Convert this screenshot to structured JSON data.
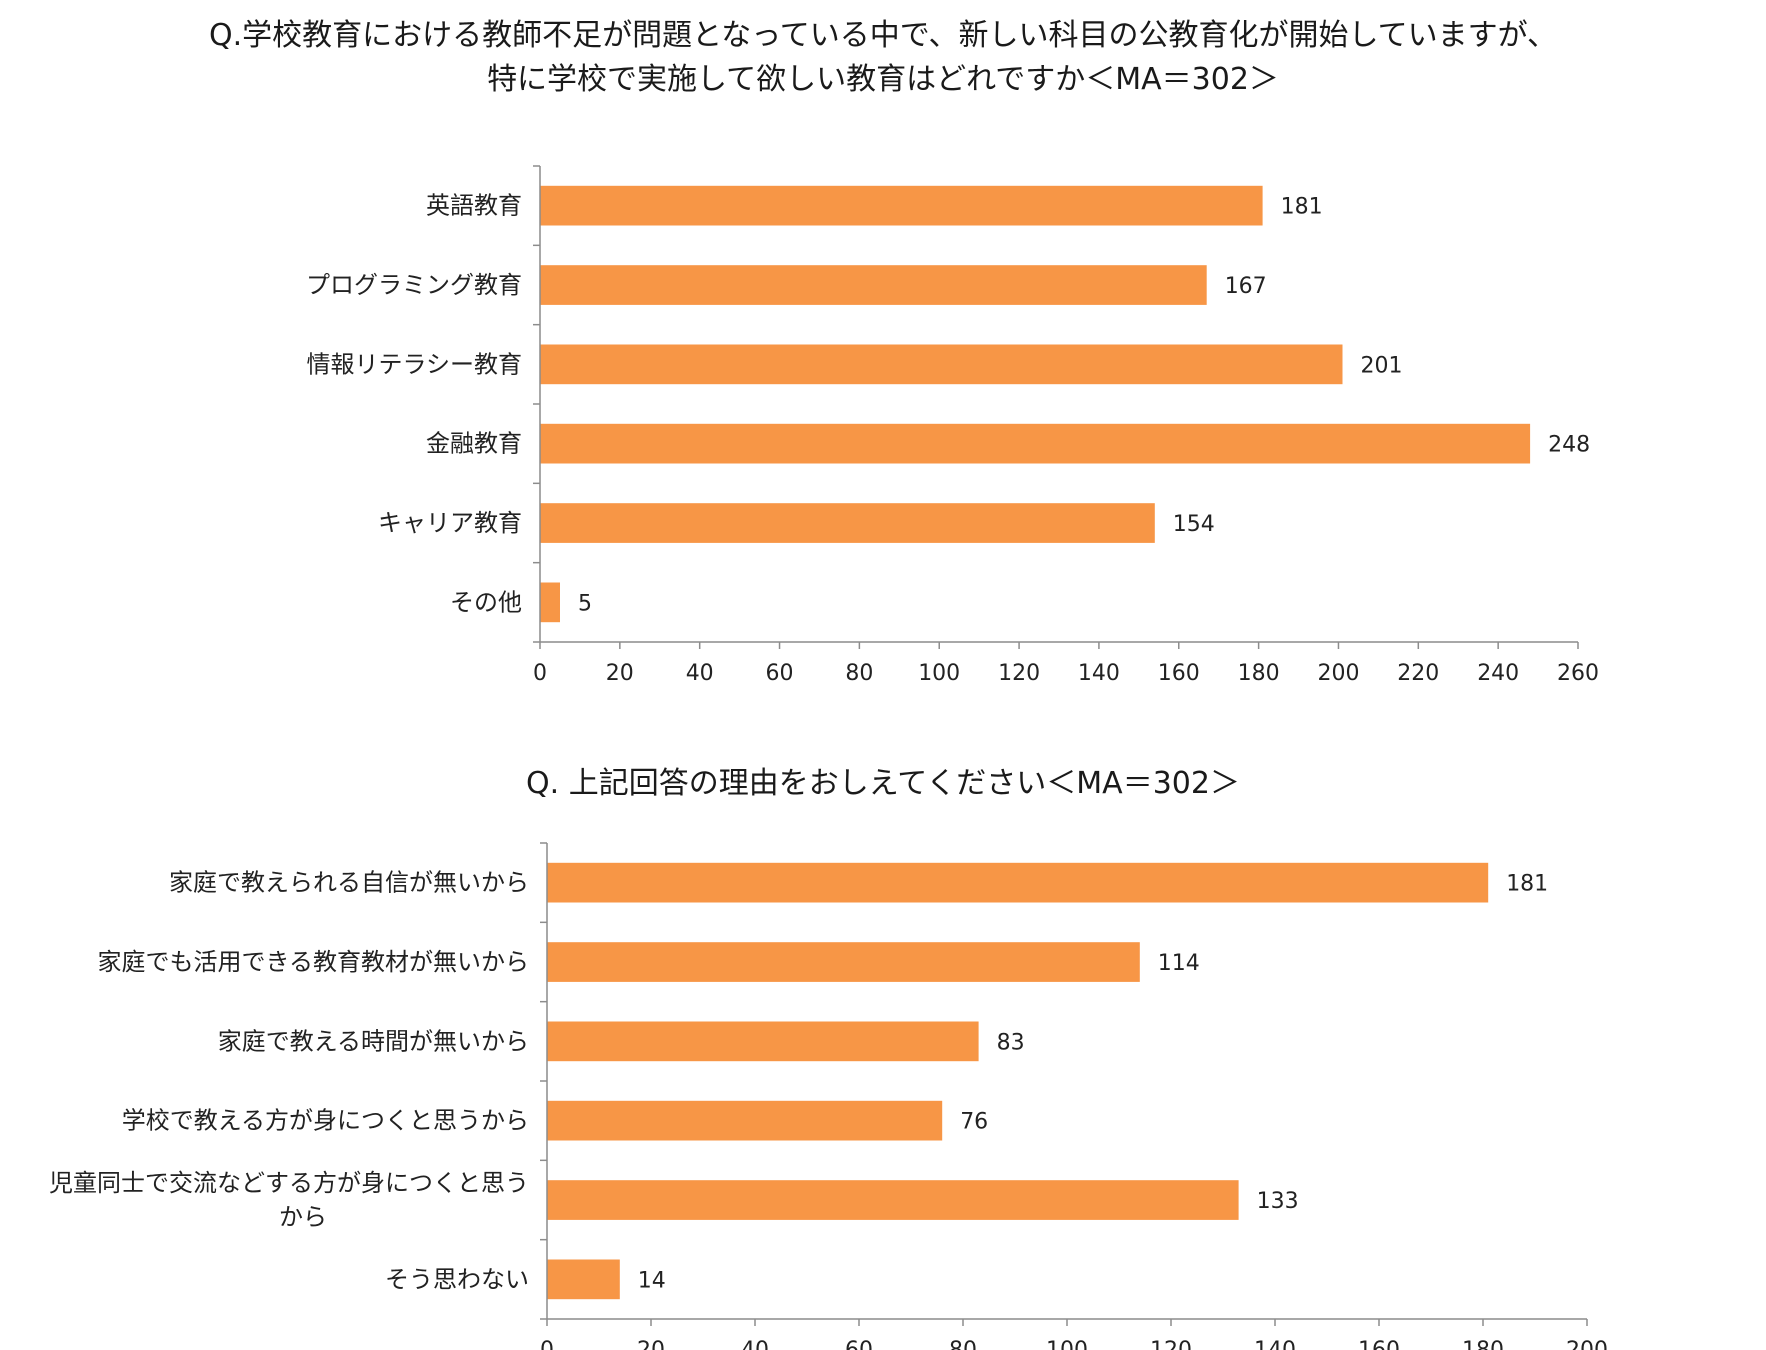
{
  "chart_data": [
    {
      "type": "bar",
      "orientation": "horizontal",
      "title_lines": [
        "Q.学校教育における教師不足が問題となっている中で、新しい科目の公教育化が開始していますが、",
        "特に学校で実施して欲しい教育はどれですか＜MA＝302＞"
      ],
      "categories": [
        "英語教育",
        "プログラミング教育",
        "情報リテラシー教育",
        "金融教育",
        "キャリア教育",
        "その他"
      ],
      "values": [
        181,
        167,
        201,
        248,
        154,
        5
      ],
      "xlim": [
        0,
        260
      ],
      "xticks": [
        0,
        20,
        40,
        60,
        80,
        100,
        120,
        140,
        160,
        180,
        200,
        220,
        240,
        260
      ],
      "bar_color": "#F79646",
      "grid": false,
      "data_labels": true
    },
    {
      "type": "bar",
      "orientation": "horizontal",
      "title_lines": [
        "Q. 上記回答の理由をおしえてください＜MA＝302＞"
      ],
      "categories": [
        "家庭で教えられる自信が無いから",
        "家庭でも活用できる教育教材が無いから",
        "家庭で教える時間が無いから",
        "学校で教える方が身につくと思うから",
        "児童同士で交流などする方が身につくと思うから",
        "そう思わない"
      ],
      "category_label_lines": [
        [
          "家庭で教えられる自信が無いから"
        ],
        [
          "家庭でも活用できる教育教材が無いから"
        ],
        [
          "家庭で教える時間が無いから"
        ],
        [
          "学校で教える方が身につくと思うから"
        ],
        [
          "児童同士で交流などする方が身につくと思う",
          "から"
        ],
        [
          "そう思わない"
        ]
      ],
      "values": [
        181,
        114,
        83,
        76,
        133,
        14
      ],
      "xlim": [
        0,
        200
      ],
      "xticks": [
        0,
        20,
        40,
        60,
        80,
        100,
        120,
        140,
        160,
        180,
        200
      ],
      "bar_color": "#F79646",
      "grid": false,
      "data_labels": true
    }
  ]
}
